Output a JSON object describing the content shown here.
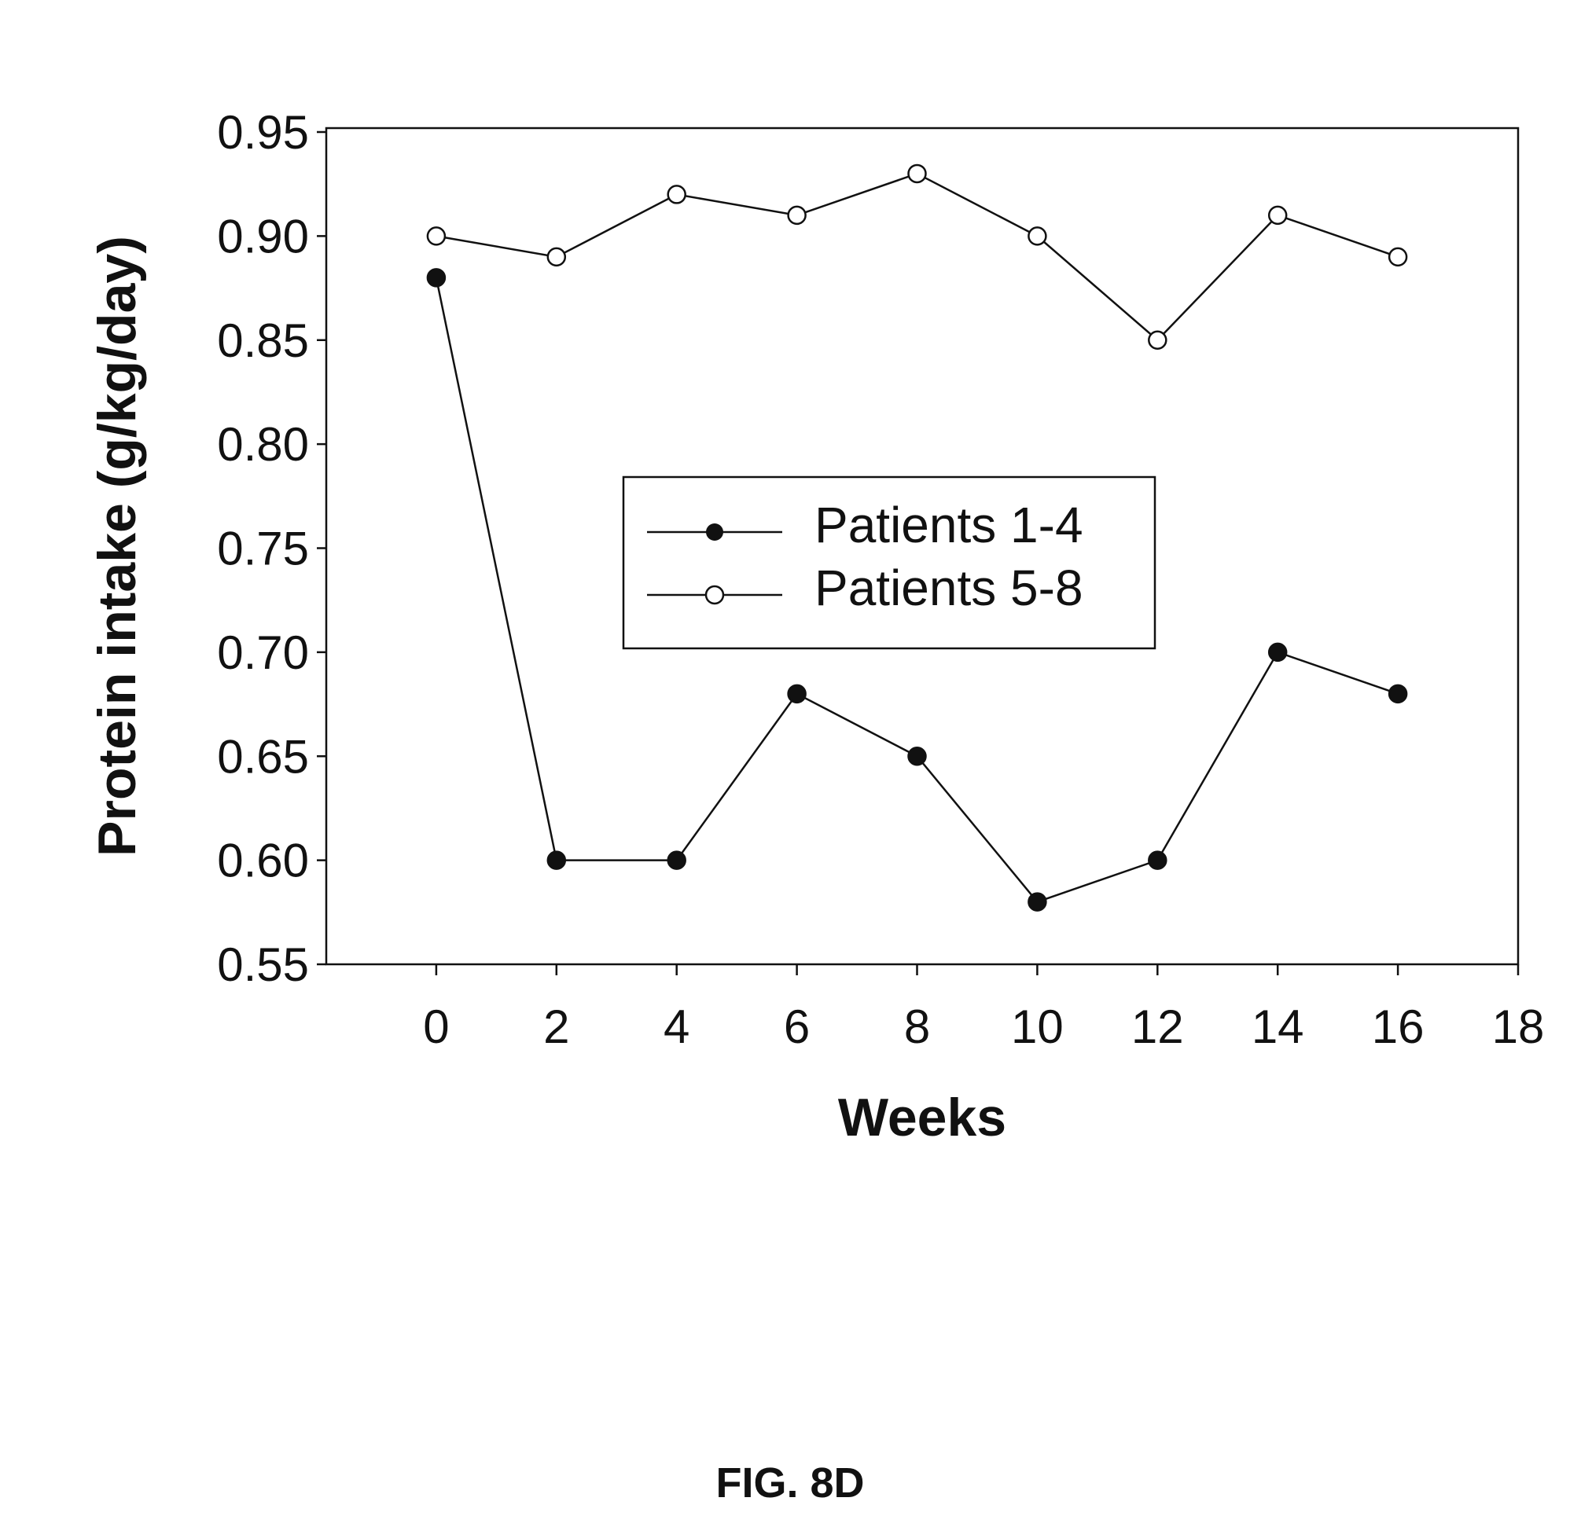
{
  "chart_data": {
    "type": "line",
    "title": "",
    "xlabel": "Weeks",
    "ylabel": "Protein intake (g/kg/day)",
    "xlim": [
      -1.83,
      18
    ],
    "ylim": [
      0.55,
      0.95
    ],
    "xticks": [
      0,
      2,
      4,
      6,
      8,
      10,
      12,
      14,
      16,
      18
    ],
    "yticks": [
      "0.55",
      "0.60",
      "0.65",
      "0.70",
      "0.75",
      "0.80",
      "0.85",
      "0.90",
      "0.95"
    ],
    "grid": false,
    "legend_position": "center",
    "x": [
      0,
      2,
      4,
      6,
      8,
      10,
      12,
      14,
      16
    ],
    "series": [
      {
        "name": "Patients 1-4",
        "marker": "filled-circle",
        "values": [
          0.88,
          0.6,
          0.6,
          0.68,
          0.65,
          0.58,
          0.6,
          0.7,
          0.68
        ]
      },
      {
        "name": "Patients 5-8",
        "marker": "open-circle",
        "values": [
          0.9,
          0.89,
          0.92,
          0.91,
          0.93,
          0.9,
          0.85,
          0.91,
          0.89
        ]
      }
    ]
  },
  "caption": "FIG. 8D"
}
